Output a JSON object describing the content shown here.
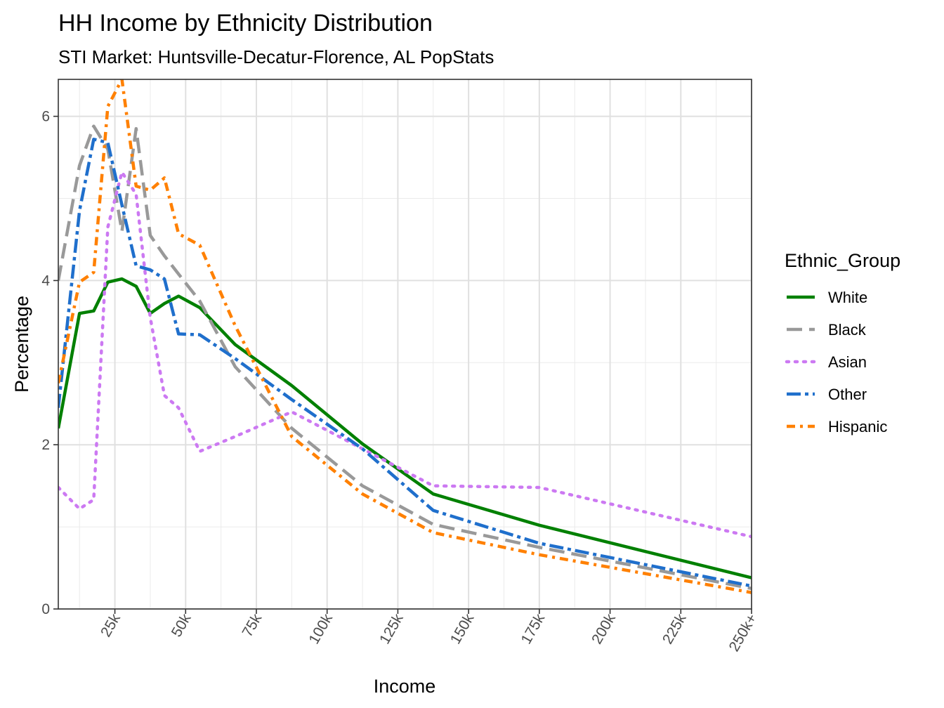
{
  "chart_data": {
    "type": "line",
    "title": "HH Income by Ethnicity Distribution",
    "subtitle": "STI Market: Huntsville-Decatur-Florence, AL PopStats",
    "xlabel": "Income",
    "ylabel": "Percentage",
    "xlim": [
      5,
      250
    ],
    "ylim": [
      0,
      6.45
    ],
    "x_ticks": [
      {
        "value": 25,
        "label": "25k"
      },
      {
        "value": 50,
        "label": "50k"
      },
      {
        "value": 75,
        "label": "75k"
      },
      {
        "value": 100,
        "label": "100k"
      },
      {
        "value": 125,
        "label": "125k"
      },
      {
        "value": 150,
        "label": "150k"
      },
      {
        "value": 175,
        "label": "175k"
      },
      {
        "value": 200,
        "label": "200k"
      },
      {
        "value": 225,
        "label": "225k"
      },
      {
        "value": 250,
        "label": "250k+"
      }
    ],
    "y_ticks": [
      {
        "value": 0,
        "label": "0"
      },
      {
        "value": 2,
        "label": "2"
      },
      {
        "value": 4,
        "label": "4"
      },
      {
        "value": 6,
        "label": "6"
      }
    ],
    "grid": true,
    "legend": {
      "title": "Ethnic_Group",
      "position": "right"
    },
    "x": [
      5,
      12.5,
      17.5,
      22.5,
      27.5,
      32.5,
      37.5,
      42.5,
      47.5,
      55,
      67.5,
      87.5,
      112.5,
      137.5,
      175,
      250
    ],
    "series": [
      {
        "name": "White",
        "color": "#008000",
        "dash": "solid",
        "values": [
          2.2,
          3.6,
          3.63,
          3.98,
          4.02,
          3.93,
          3.6,
          3.72,
          3.81,
          3.67,
          3.22,
          2.72,
          2.01,
          1.4,
          1.02,
          0.38
        ]
      },
      {
        "name": "Black",
        "color": "#999999",
        "dash": "longdash",
        "values": [
          4.0,
          5.4,
          5.88,
          5.6,
          4.6,
          5.85,
          4.55,
          4.3,
          4.08,
          3.75,
          2.95,
          2.2,
          1.5,
          1.03,
          0.75,
          0.25
        ]
      },
      {
        "name": "Asian",
        "color": "#CC79F2",
        "dash": "dotted",
        "values": [
          1.48,
          1.22,
          1.33,
          4.65,
          5.32,
          5.05,
          3.55,
          2.6,
          2.45,
          1.92,
          2.1,
          2.4,
          1.95,
          1.5,
          1.48,
          0.88
        ]
      },
      {
        "name": "Other",
        "color": "#1F6FCC",
        "dash": "dashdot-long",
        "values": [
          2.45,
          4.85,
          5.72,
          5.68,
          4.92,
          4.18,
          4.13,
          4.02,
          3.35,
          3.34,
          3.05,
          2.55,
          1.95,
          1.2,
          0.8,
          0.28
        ]
      },
      {
        "name": "Hispanic",
        "color": "#FF8000",
        "dash": "dashdot",
        "values": [
          2.75,
          3.98,
          4.1,
          6.12,
          6.45,
          5.15,
          5.1,
          5.25,
          4.57,
          4.43,
          3.45,
          2.1,
          1.4,
          0.93,
          0.66,
          0.2
        ]
      }
    ]
  }
}
